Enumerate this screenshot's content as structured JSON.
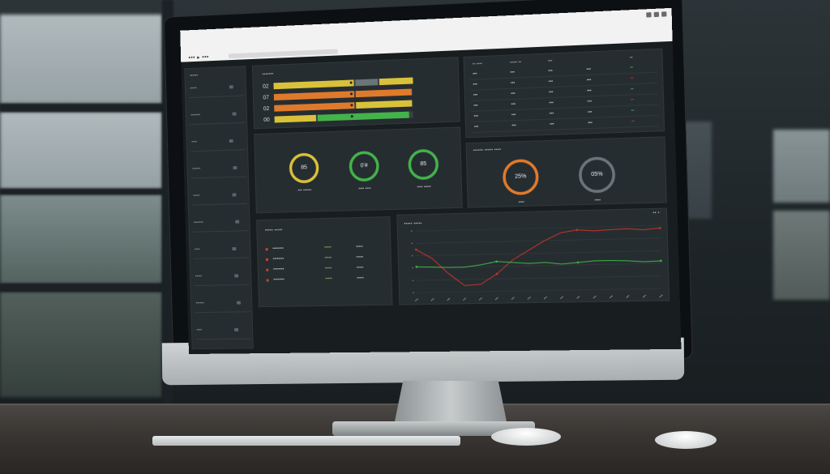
{
  "colors": {
    "yellow": "#d9c23a",
    "orange": "#e07a2b",
    "green": "#43b34a",
    "red": "#c9332a",
    "gray": "#6b7478",
    "panel": "#262d31"
  },
  "browser": {
    "url_text": "••• ▸ •••",
    "window_controls": [
      "minimize-icon",
      "maximize-icon",
      "close-icon"
    ]
  },
  "sidebar": {
    "header": "••••••",
    "items": [
      {
        "label": "•••••",
        "icon": "folder-icon"
      },
      {
        "label": "•••••••",
        "icon": "list-icon"
      },
      {
        "label": "••••",
        "icon": "file-icon"
      },
      {
        "label": "••••••",
        "icon": "chart-icon"
      },
      {
        "label": "•••••",
        "icon": "gear-icon"
      },
      {
        "label": "•••••••",
        "icon": "user-icon"
      },
      {
        "label": "••••",
        "icon": "lock-icon"
      },
      {
        "label": "•••••",
        "icon": "mail-icon"
      },
      {
        "label": "••••••",
        "icon": "bell-icon"
      },
      {
        "label": "••••",
        "icon": "help-icon"
      }
    ]
  },
  "progress_panel": {
    "title": "•••••••",
    "rows": [
      {
        "label": "02",
        "segments": [
          {
            "color": "yellow",
            "fraction": 0.58
          },
          {
            "color": "gray",
            "fraction": 0.16
          },
          {
            "color": "yellow",
            "fraction": 0.24
          }
        ]
      },
      {
        "label": "07",
        "segments": [
          {
            "color": "orange",
            "fraction": 0.58
          },
          {
            "color": "orange",
            "fraction": 0.4
          }
        ]
      },
      {
        "label": "02",
        "segments": [
          {
            "color": "orange",
            "fraction": 0.58
          },
          {
            "color": "yellow",
            "fraction": 0.4
          }
        ]
      },
      {
        "label": "00",
        "segments": [
          {
            "color": "yellow",
            "fraction": 0.3
          },
          {
            "color": "green",
            "fraction": 0.66
          }
        ]
      }
    ]
  },
  "gauges_left": [
    {
      "value": "85",
      "color": "yellow",
      "fraction": 1.0,
      "caption": "••• ••••••"
    },
    {
      "value": "0’#",
      "color": "green",
      "fraction": 1.0,
      "caption": "•••• ••••"
    },
    {
      "value": "85",
      "color": "green",
      "fraction": 1.0,
      "caption": "•••• •••••"
    }
  ],
  "table_panel": {
    "headers": [
      "•• ••••",
      "••••• ••",
      "•••",
      "••"
    ],
    "rows": [
      [
        "•••",
        "•••",
        "•••",
        "•••",
        "••"
      ],
      [
        "•••",
        "•••",
        "•••",
        "•••",
        "••"
      ],
      [
        "•••",
        "•••",
        "•••",
        "•••",
        "••"
      ],
      [
        "•••",
        "•••",
        "•••",
        "•••",
        "••"
      ],
      [
        "•••",
        "•••",
        "•••",
        "•••",
        "••"
      ],
      [
        "•••",
        "•••",
        "•••",
        "•••",
        "••"
      ]
    ]
  },
  "gauges_right": {
    "title": "•••••• ••••• ••••",
    "items": [
      {
        "value": "25%",
        "color": "orange",
        "fraction": 1.0,
        "caption": "••••"
      },
      {
        "value": "05%",
        "color": "gray",
        "fraction": 1.0,
        "caption": "••••"
      }
    ]
  },
  "list_panel": {
    "title": "••••• •••••",
    "rows": [
      {
        "label": "••••••••",
        "value": "•••••",
        "value2": "•••••"
      },
      {
        "label": "••••••••",
        "value": "•••••",
        "value2": "•••••"
      },
      {
        "label": "••••••••",
        "value": "•••••",
        "value2": "•••••"
      },
      {
        "label": "••••••••",
        "value": "•••••",
        "value2": "•••••"
      }
    ]
  },
  "line_panel": {
    "title": "••••• •••••",
    "corner": "•• •"
  },
  "chart_data": {
    "type": "line",
    "title": "",
    "xlabel": "",
    "ylabel": "",
    "x": [
      1,
      2,
      3,
      4,
      5,
      6,
      7,
      8,
      9,
      10,
      11,
      12,
      13,
      14,
      15,
      16
    ],
    "ylim": [
      0,
      10
    ],
    "grid": true,
    "series": [
      {
        "color": "red",
        "values": [
          7.0,
          5.5,
          3.0,
          1.0,
          1.2,
          2.8,
          5.0,
          6.5,
          8.0,
          9.2,
          9.6,
          9.4,
          9.5,
          9.6,
          9.4,
          9.6
        ]
      },
      {
        "color": "green",
        "values": [
          4.2,
          4.1,
          4.0,
          4.0,
          4.3,
          4.8,
          4.6,
          4.4,
          4.5,
          4.2,
          4.4,
          4.6,
          4.6,
          4.5,
          4.3,
          4.4
        ]
      }
    ]
  }
}
